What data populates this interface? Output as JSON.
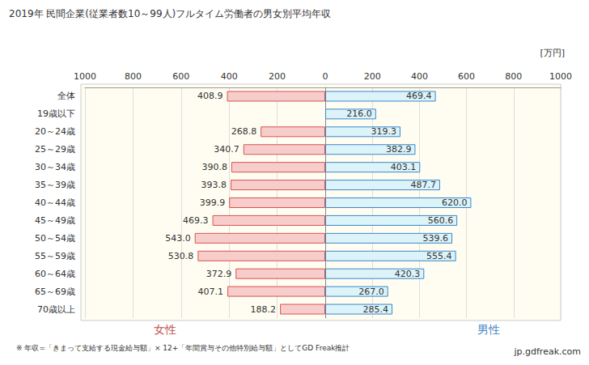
{
  "chart_data": [
    {
      "type": "bar",
      "orientation": "horizontal",
      "title": "2019年 民間企業(従業者数10～99人)フルタイム労働者の男女別平均年収",
      "categories": [
        "全体",
        "19歳以下",
        "20～24歳",
        "25～29歳",
        "30～34歳",
        "35～39歳",
        "40～44歳",
        "45～49歳",
        "50～54歳",
        "55～59歳",
        "60～64歳",
        "65～69歳",
        "70歳以上"
      ],
      "series": [
        {
          "name": "女性",
          "color": "#f7cdcb",
          "values": [
            408.9,
            null,
            268.8,
            340.7,
            390.8,
            393.8,
            399.9,
            469.3,
            543.0,
            530.8,
            372.9,
            407.1,
            188.2
          ],
          "value_labels": [
            "408.9",
            null,
            "268.8",
            "340.7",
            "390.8",
            "393.8",
            "399.9",
            "469.3",
            "543.0",
            "530.8",
            "372.9",
            "407.1",
            "188.2"
          ]
        }
      ],
      "xlim": [
        1000,
        0
      ],
      "xticks": [
        0,
        200,
        400,
        600,
        800,
        1000
      ],
      "data_labels": true,
      "grid": true
    },
    {
      "type": "bar",
      "orientation": "horizontal",
      "categories": [
        "全体",
        "19歳以下",
        "20～24歳",
        "25～29歳",
        "30～34歳",
        "35～39歳",
        "40～44歳",
        "45～49歳",
        "50～54歳",
        "55～59歳",
        "60～64歳",
        "65～69歳",
        "70歳以上"
      ],
      "series": [
        {
          "name": "男性",
          "color": "#dcf3fa",
          "values": [
            469.4,
            216.0,
            319.3,
            382.9,
            403.1,
            487.7,
            620.0,
            560.6,
            539.6,
            555.4,
            420.3,
            267.0,
            285.4
          ],
          "value_labels": [
            "469.4",
            "216.0",
            "319.3",
            "382.9",
            "403.1",
            "487.7",
            "620.0",
            "560.6",
            "539.6",
            "555.4",
            "420.3",
            "267.0",
            "285.4"
          ]
        }
      ],
      "xlim": [
        0,
        1000
      ],
      "xticks": [
        200,
        400,
        600,
        800,
        1000
      ],
      "data_labels": true,
      "grid": true,
      "tick_labels": "x",
      "annotations": [
        "[万円]",
        "※ 年収=「きまって支給する現金給与額」× 12+「年間賞与その他特別給与額」としてGD Freak推計",
        "jp.gdfreak.com"
      ]
    }
  ]
}
